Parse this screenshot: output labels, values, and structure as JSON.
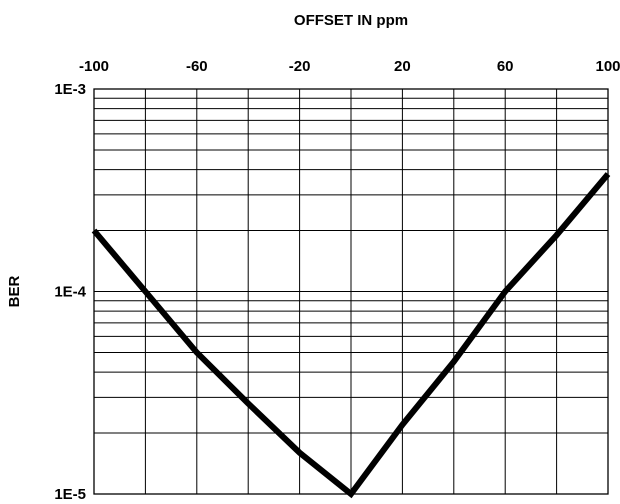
{
  "chart_data": {
    "type": "line",
    "title": "",
    "xlabel": "OFFSET IN ppm",
    "ylabel": "BER",
    "x_axis_position": "top",
    "xlim": [
      -100,
      100
    ],
    "ylim": [
      1e-05,
      0.001
    ],
    "y_scale": "log",
    "grid": true,
    "x_ticks": [
      -100,
      -60,
      -20,
      20,
      60,
      100
    ],
    "x_tick_labels": [
      "-100",
      "-60",
      "-20",
      "20",
      "60",
      "100"
    ],
    "x_gridlines": [
      -100,
      -80,
      -60,
      -40,
      -20,
      0,
      20,
      40,
      60,
      80,
      100
    ],
    "y_ticks": [
      1e-05,
      0.0001,
      0.001
    ],
    "y_tick_labels": [
      "1E-5",
      "1E-4",
      "1E-3"
    ],
    "series": [
      {
        "color": "#000000",
        "x": [
          -100,
          -80,
          -60,
          -40,
          -20,
          0,
          20,
          40,
          60,
          80,
          100
        ],
        "y": [
          0.0002,
          0.0001,
          5e-05,
          2.8e-05,
          1.6e-05,
          1e-05,
          2.2e-05,
          4.5e-05,
          0.0001,
          0.00019,
          0.00038
        ]
      }
    ]
  }
}
